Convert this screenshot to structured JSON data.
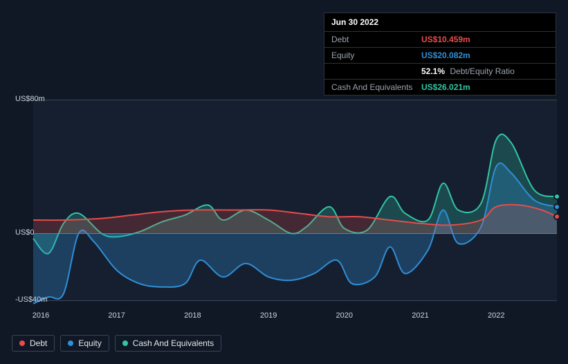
{
  "tooltip": {
    "date": "Jun 30 2022",
    "rows": [
      {
        "label": "Debt",
        "value": "US$10.459m",
        "color": "#e84c4c"
      },
      {
        "label": "Equity",
        "value": "US$20.082m",
        "color": "#2f8fd8"
      },
      {
        "label": "",
        "value": "52.1%",
        "suffix": "Debt/Equity Ratio",
        "color": "#ffffff"
      },
      {
        "label": "Cash And Equivalents",
        "value": "US$26.021m",
        "color": "#31c6a6"
      }
    ]
  },
  "chart": {
    "type": "area",
    "background_color": "#161f2f",
    "page_background": "#101826",
    "grid_color": "#3a4556",
    "zero_line_color": "#6b7688",
    "ylim": [
      -40,
      80
    ],
    "y_ticks": [
      {
        "v": 80,
        "label": "US$80m"
      },
      {
        "v": 0,
        "label": "US$0"
      },
      {
        "v": -40,
        "label": "-US$40m"
      }
    ],
    "x_years": [
      2016,
      2017,
      2018,
      2019,
      2020,
      2021,
      2022
    ],
    "x_domain": [
      2015.9,
      2022.8
    ],
    "series": [
      {
        "name": "Cash And Equivalents",
        "color": "#31c6a6",
        "fill_opacity": 0.25,
        "stroke_width": 2,
        "data": [
          [
            2015.9,
            -3
          ],
          [
            2016.1,
            -12
          ],
          [
            2016.3,
            6
          ],
          [
            2016.5,
            12
          ],
          [
            2016.8,
            0
          ],
          [
            2017.0,
            -2
          ],
          [
            2017.3,
            1
          ],
          [
            2017.6,
            7
          ],
          [
            2017.9,
            11
          ],
          [
            2018.2,
            17
          ],
          [
            2018.4,
            8
          ],
          [
            2018.7,
            14
          ],
          [
            2019.0,
            8
          ],
          [
            2019.3,
            0
          ],
          [
            2019.5,
            4
          ],
          [
            2019.8,
            16
          ],
          [
            2020.0,
            3
          ],
          [
            2020.3,
            2
          ],
          [
            2020.6,
            22
          ],
          [
            2020.8,
            12
          ],
          [
            2021.1,
            8
          ],
          [
            2021.3,
            30
          ],
          [
            2021.5,
            14
          ],
          [
            2021.8,
            18
          ],
          [
            2022.0,
            56
          ],
          [
            2022.2,
            54
          ],
          [
            2022.5,
            26
          ],
          [
            2022.8,
            22
          ]
        ]
      },
      {
        "name": "Equity",
        "color": "#2f8fd8",
        "fill_opacity": 0.3,
        "stroke_width": 2,
        "data": [
          [
            2015.9,
            -42
          ],
          [
            2016.1,
            -38
          ],
          [
            2016.3,
            -36
          ],
          [
            2016.5,
            0
          ],
          [
            2016.7,
            -5
          ],
          [
            2017.0,
            -22
          ],
          [
            2017.3,
            -30
          ],
          [
            2017.6,
            -32
          ],
          [
            2017.9,
            -30
          ],
          [
            2018.1,
            -16
          ],
          [
            2018.4,
            -26
          ],
          [
            2018.7,
            -18
          ],
          [
            2019.0,
            -26
          ],
          [
            2019.3,
            -28
          ],
          [
            2019.6,
            -24
          ],
          [
            2019.9,
            -16
          ],
          [
            2020.1,
            -30
          ],
          [
            2020.4,
            -26
          ],
          [
            2020.6,
            -8
          ],
          [
            2020.8,
            -24
          ],
          [
            2021.1,
            -10
          ],
          [
            2021.3,
            14
          ],
          [
            2021.5,
            -6
          ],
          [
            2021.8,
            4
          ],
          [
            2022.0,
            40
          ],
          [
            2022.2,
            36
          ],
          [
            2022.5,
            20
          ],
          [
            2022.8,
            16
          ]
        ]
      },
      {
        "name": "Debt",
        "color": "#e84c4c",
        "fill_opacity": 0.22,
        "stroke_width": 2,
        "data": [
          [
            2015.9,
            8
          ],
          [
            2016.3,
            8
          ],
          [
            2016.8,
            9
          ],
          [
            2017.2,
            11
          ],
          [
            2017.6,
            13
          ],
          [
            2018.0,
            14
          ],
          [
            2018.5,
            14
          ],
          [
            2019.0,
            14
          ],
          [
            2019.4,
            12
          ],
          [
            2019.8,
            10
          ],
          [
            2020.2,
            10
          ],
          [
            2020.6,
            8
          ],
          [
            2021.0,
            6
          ],
          [
            2021.4,
            5
          ],
          [
            2021.8,
            8
          ],
          [
            2022.0,
            16
          ],
          [
            2022.3,
            17
          ],
          [
            2022.6,
            14
          ],
          [
            2022.8,
            10
          ]
        ]
      }
    ],
    "legend": [
      {
        "label": "Debt",
        "color": "#e84c4c"
      },
      {
        "label": "Equity",
        "color": "#2f8fd8"
      },
      {
        "label": "Cash And Equivalents",
        "color": "#31c6a6"
      }
    ],
    "markers": [
      {
        "y": 10,
        "color": "#e84c4c"
      },
      {
        "y": 16,
        "color": "#2f8fd8"
      },
      {
        "y": 22,
        "color": "#31c6a6"
      }
    ]
  }
}
